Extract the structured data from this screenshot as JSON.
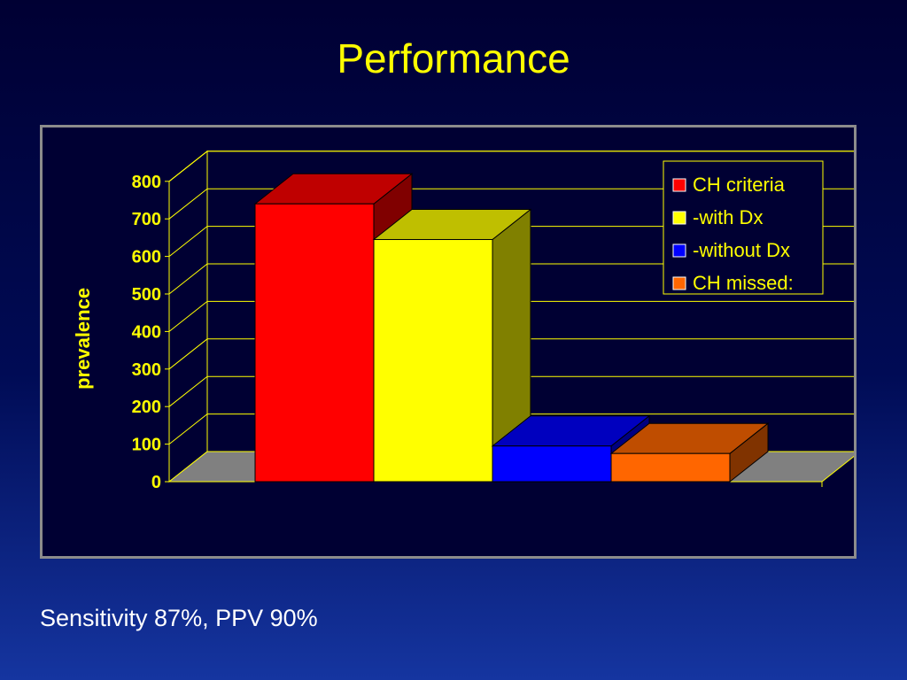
{
  "slide": {
    "title": "Performance",
    "footer": "Sensitivity 87%, PPV 90%"
  },
  "colors": {
    "background": "#000033",
    "title": "#ffff00",
    "gridlines": "#ffff00",
    "floor": "#808080",
    "legend_border": "#ffff00"
  },
  "chart_data": {
    "type": "bar",
    "style": "3d-clustered",
    "title": "",
    "xlabel": "",
    "ylabel": "prevalence",
    "ylim": [
      0,
      800
    ],
    "yticks": [
      0,
      100,
      200,
      300,
      400,
      500,
      600,
      700,
      800
    ],
    "grid": true,
    "legend_position": "top-right",
    "series": [
      {
        "name": "CH criteria",
        "values": [
          740
        ],
        "color": "#ff0000"
      },
      {
        "name": "-with Dx",
        "values": [
          645
        ],
        "color": "#ffff00"
      },
      {
        "name": "-without Dx",
        "values": [
          95
        ],
        "color": "#0000ff"
      },
      {
        "name": "CH missed:",
        "values": [
          75
        ],
        "color": "#ff6600"
      }
    ]
  }
}
